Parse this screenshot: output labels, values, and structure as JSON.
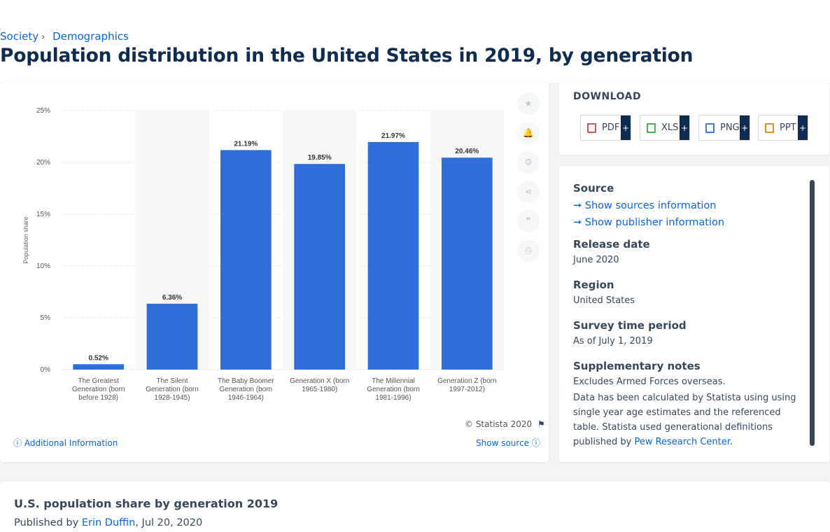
{
  "breadcrumb": {
    "items": [
      "Society",
      "Demographics"
    ],
    "separator": "›"
  },
  "page_title": "Population distribution in the United States in 2019, by generation",
  "chart_data": {
    "type": "bar",
    "categories": [
      "The Greatest Generation (born before 1928)",
      "The Silent Generation (born 1928-1945)",
      "The Baby Boomer Generation (born 1946-1964)",
      "Generation X (born 1965-1980)",
      "The Millennial Generation (born 1981-1996)",
      "Generation Z (born 1997-2012)"
    ],
    "category_label_lines": [
      [
        "The Greatest",
        "Generation (born",
        "before 1928)"
      ],
      [
        "The Silent",
        "Generation (born",
        "1928-1945)"
      ],
      [
        "The Baby Boomer",
        "Generation (born",
        "1946-1964)"
      ],
      [
        "Generation X (born",
        "1965-1980)"
      ],
      [
        "The Millennial",
        "Generation (born",
        "1981-1996)"
      ],
      [
        "Generation Z (born",
        "1997-2012)"
      ]
    ],
    "values": [
      0.52,
      6.36,
      21.19,
      19.85,
      21.97,
      20.46
    ],
    "data_labels": [
      "0.52%",
      "6.36%",
      "21.19%",
      "19.85%",
      "21.97%",
      "20.46%"
    ],
    "ylabel": "Population share",
    "ylim": [
      0,
      25
    ],
    "yticks": [
      0,
      5,
      10,
      15,
      20,
      25
    ],
    "ytick_labels": [
      "0%",
      "5%",
      "10%",
      "15%",
      "20%",
      "25%"
    ],
    "bar_color": "#2f6ed8",
    "grid": true
  },
  "chart_tools": [
    {
      "name": "favorite-star-icon",
      "glyph": "★"
    },
    {
      "name": "notification-bell-icon",
      "glyph": "🔔"
    },
    {
      "name": "settings-gear-icon",
      "glyph": "⚙"
    },
    {
      "name": "share-icon",
      "glyph": "⋖"
    },
    {
      "name": "cite-quote-icon",
      "glyph": "❞"
    },
    {
      "name": "print-icon",
      "glyph": "⎙"
    }
  ],
  "copyright": "© Statista 2020",
  "additional_info": "Additional Information",
  "show_source": "Show source",
  "download": {
    "title": "DOWNLOAD",
    "buttons": [
      {
        "label": "PDF",
        "icon_color": "#d9534f"
      },
      {
        "label": "XLS",
        "icon_color": "#4caf50"
      },
      {
        "label": "PNG",
        "icon_color": "#3a7bd5"
      },
      {
        "label": "PPT",
        "icon_color": "#f08a24"
      }
    ],
    "plus": "+"
  },
  "info": {
    "source_heading": "Source",
    "show_sources": "Show sources information",
    "show_publisher": "Show publisher information",
    "release_heading": "Release date",
    "release_value": "June 2020",
    "region_heading": "Region",
    "region_value": "United States",
    "survey_heading": "Survey time period",
    "survey_value": "As of July 1, 2019",
    "notes_heading": "Supplementary notes",
    "notes_line1": "Excludes Armed Forces overseas.",
    "notes_line2": "Data has been calculated by Statista using using single year age estimates and the referenced table. Statista used generational definitions published by",
    "notes_link": "Pew Research Center",
    "notes_end": "."
  },
  "bottom": {
    "title": "U.S. population share by generation 2019",
    "published_by": "Published by",
    "author": "Erin Duffin",
    "date": ", Jul 20, 2020"
  }
}
